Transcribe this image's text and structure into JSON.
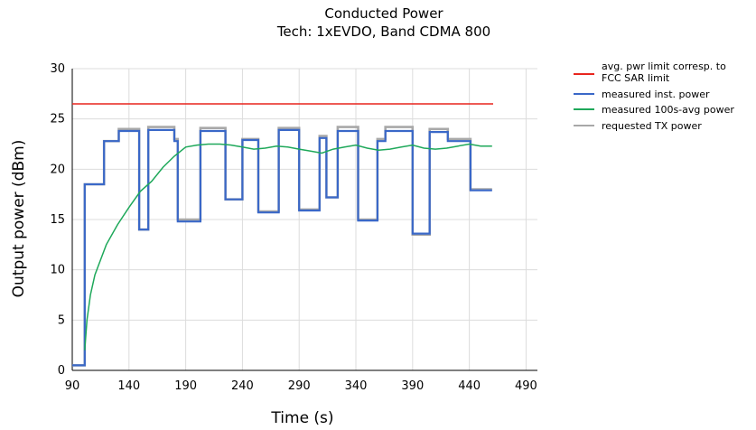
{
  "chart_data": {
    "type": "line",
    "title": "Conducted Power",
    "subtitle": "Tech: 1xEVDO, Band CDMA 800",
    "xlabel": "Time (s)",
    "ylabel": "Output power (dBm)",
    "xlim": [
      90,
      500
    ],
    "ylim": [
      0,
      30
    ],
    "xticks": [
      90,
      140,
      190,
      240,
      290,
      340,
      390,
      440,
      490
    ],
    "yticks": [
      0,
      5,
      10,
      15,
      20,
      25,
      30
    ],
    "grid": true,
    "legend_position": "right",
    "legend": [
      "avg. pwr limit corresp. to FCC SAR limit",
      "measured inst. power",
      "measured 100s-avg power",
      "requested TX power"
    ],
    "series": [
      {
        "name": "avg. pwr limit corresp. to FCC SAR limit",
        "color": "#e8251e",
        "x": [
          90,
          461
        ],
        "y": [
          26.5,
          26.5
        ]
      },
      {
        "name": "requested TX power",
        "color": "#a8a8a8",
        "x": [
          90,
          101,
          101,
          107,
          107,
          118,
          118,
          131,
          131,
          149,
          149,
          157,
          157,
          166,
          166,
          180,
          180,
          183,
          183,
          198,
          198,
          203,
          203,
          219,
          219,
          225,
          225,
          240,
          240,
          245,
          245,
          254,
          254,
          266,
          266,
          272,
          272,
          282,
          282,
          290,
          290,
          297,
          297,
          308,
          308,
          314,
          314,
          324,
          324,
          331,
          331,
          342,
          342,
          348,
          348,
          359,
          359,
          366,
          366,
          379,
          379,
          390,
          390,
          400,
          400,
          405,
          405,
          421,
          421,
          427,
          427,
          441,
          441,
          445,
          445,
          460
        ],
        "y": [
          0.5,
          0.5,
          18.5,
          18.5,
          18.5,
          18.5,
          22.8,
          22.8,
          24.0,
          24.0,
          14.0,
          14.0,
          24.2,
          24.2,
          24.2,
          24.2,
          23.0,
          23.0,
          15.0,
          15.0,
          15.0,
          15.0,
          24.1,
          24.1,
          24.1,
          24.1,
          17.0,
          17.0,
          23.0,
          23.0,
          23.0,
          23.0,
          15.8,
          15.8,
          15.8,
          15.8,
          24.1,
          24.1,
          24.1,
          24.1,
          16.0,
          16.0,
          16.0,
          16.0,
          23.3,
          23.3,
          17.2,
          17.2,
          24.2,
          24.2,
          24.2,
          24.2,
          15.0,
          15.0,
          15.0,
          15.0,
          23.0,
          23.0,
          24.2,
          24.2,
          24.2,
          24.2,
          13.5,
          13.5,
          13.5,
          13.5,
          24.0,
          24.0,
          23.0,
          23.0,
          23.0,
          23.0,
          18.0,
          18.0,
          18.0,
          18.0
        ]
      },
      {
        "name": "measured inst. power",
        "color": "#3a68c8",
        "x": [
          90,
          101,
          101,
          107,
          107,
          118,
          118,
          131,
          131,
          149,
          149,
          157,
          157,
          166,
          166,
          180,
          180,
          183,
          183,
          198,
          198,
          203,
          203,
          219,
          219,
          225,
          225,
          240,
          240,
          245,
          245,
          254,
          254,
          266,
          266,
          272,
          272,
          282,
          282,
          290,
          290,
          297,
          297,
          308,
          308,
          314,
          314,
          324,
          324,
          331,
          331,
          342,
          342,
          348,
          348,
          359,
          359,
          366,
          366,
          379,
          379,
          390,
          390,
          400,
          400,
          405,
          405,
          421,
          421,
          427,
          427,
          441,
          441,
          445,
          445,
          460
        ],
        "y": [
          0.5,
          0.5,
          18.5,
          18.5,
          18.5,
          18.5,
          22.8,
          22.8,
          23.8,
          23.8,
          14.0,
          14.0,
          23.9,
          23.9,
          23.9,
          23.9,
          22.8,
          22.8,
          14.8,
          14.8,
          14.8,
          14.8,
          23.8,
          23.8,
          23.8,
          23.8,
          17.0,
          17.0,
          22.9,
          22.9,
          22.9,
          22.9,
          15.7,
          15.7,
          15.7,
          15.7,
          23.9,
          23.9,
          23.9,
          23.9,
          15.9,
          15.9,
          15.9,
          15.9,
          23.1,
          23.1,
          17.2,
          17.2,
          23.8,
          23.8,
          23.8,
          23.8,
          14.9,
          14.9,
          14.9,
          14.9,
          22.8,
          22.8,
          23.8,
          23.8,
          23.8,
          23.8,
          13.6,
          13.6,
          13.6,
          13.6,
          23.7,
          23.7,
          22.8,
          22.8,
          22.8,
          22.8,
          17.9,
          17.9,
          17.9,
          17.9
        ]
      },
      {
        "name": "measured 100s-avg power",
        "color": "#1ea85a",
        "x": [
          101,
          103,
          106,
          110,
          115,
          120,
          130,
          140,
          150,
          160,
          170,
          180,
          190,
          200,
          210,
          220,
          230,
          240,
          250,
          260,
          270,
          280,
          290,
          300,
          310,
          320,
          330,
          340,
          350,
          360,
          370,
          380,
          390,
          400,
          410,
          420,
          430,
          440,
          450,
          460
        ],
        "y": [
          2.0,
          5.0,
          7.5,
          9.5,
          11.0,
          12.5,
          14.5,
          16.2,
          17.8,
          18.8,
          20.2,
          21.3,
          22.2,
          22.4,
          22.5,
          22.5,
          22.4,
          22.2,
          22.0,
          22.1,
          22.3,
          22.2,
          22.0,
          21.8,
          21.6,
          22.0,
          22.2,
          22.4,
          22.1,
          21.9,
          22.0,
          22.2,
          22.4,
          22.1,
          22.0,
          22.1,
          22.3,
          22.5,
          22.3,
          22.3
        ]
      }
    ]
  }
}
